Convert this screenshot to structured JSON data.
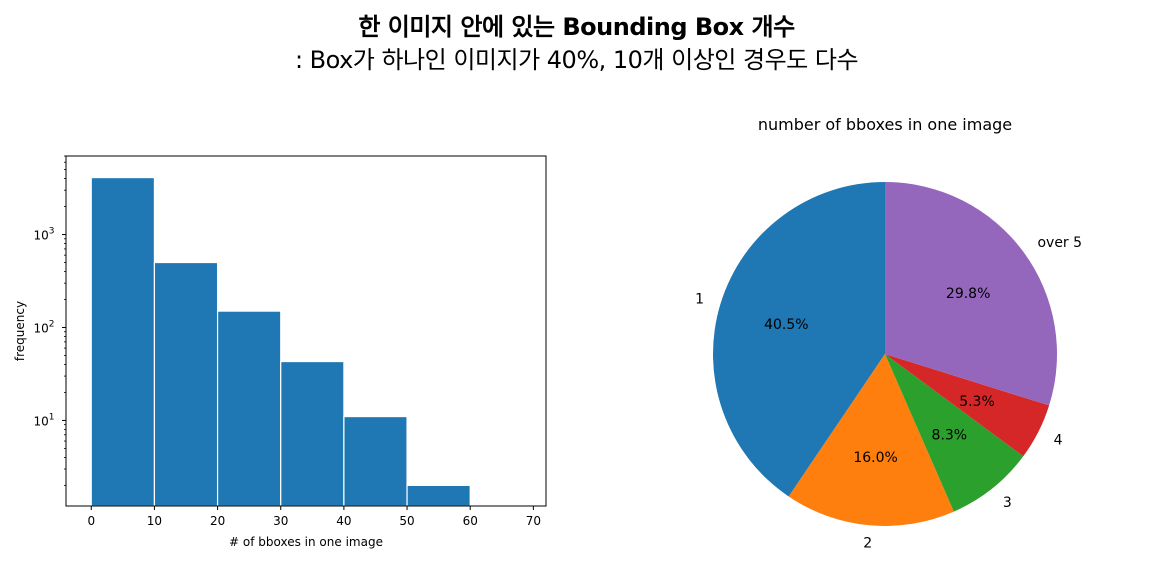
{
  "header": {
    "line1": "한 이미지 안에 있는 Bounding Box 개수",
    "line2": ": Box가 하나인 이미지가 40%, 10개 이상인 경우도 다수"
  },
  "chart_data": [
    {
      "type": "bar",
      "subtype": "histogram",
      "title": "",
      "xlabel": "# of bboxes in one image",
      "ylabel": "frequency",
      "yscale": "log",
      "xlim": [
        -4,
        72
      ],
      "ylim": [
        1.2,
        7000
      ],
      "bins": [
        {
          "start": 0,
          "end": 10,
          "value": 4100
        },
        {
          "start": 10,
          "end": 20,
          "value": 500
        },
        {
          "start": 20,
          "end": 30,
          "value": 150
        },
        {
          "start": 30,
          "end": 40,
          "value": 43
        },
        {
          "start": 40,
          "end": 50,
          "value": 11
        },
        {
          "start": 50,
          "end": 60,
          "value": 2
        }
      ],
      "xticks": [
        0,
        10,
        20,
        30,
        40,
        50,
        60,
        70
      ],
      "yticks": [
        {
          "value": 10,
          "base": "10",
          "exp": "1"
        },
        {
          "value": 100,
          "base": "10",
          "exp": "2"
        },
        {
          "value": 1000,
          "base": "10",
          "exp": "3"
        }
      ],
      "color": "#1f77b4",
      "grid": false
    },
    {
      "type": "pie",
      "title": "number of bboxes in one image",
      "slices": [
        {
          "label": "1",
          "value": 40.5,
          "pct_label": "40.5%",
          "color": "#1f77b4"
        },
        {
          "label": "2",
          "value": 16.0,
          "pct_label": "16.0%",
          "color": "#ff7f0e"
        },
        {
          "label": "3",
          "value": 8.3,
          "pct_label": "8.3%",
          "color": "#2ca02c"
        },
        {
          "label": "4",
          "value": 5.3,
          "pct_label": "5.3%",
          "color": "#d62728"
        },
        {
          "label": "over 5",
          "value": 29.8,
          "pct_label": "29.8%",
          "color": "#9467bd"
        }
      ],
      "start_angle": 90,
      "direction": "counterclockwise"
    }
  ]
}
